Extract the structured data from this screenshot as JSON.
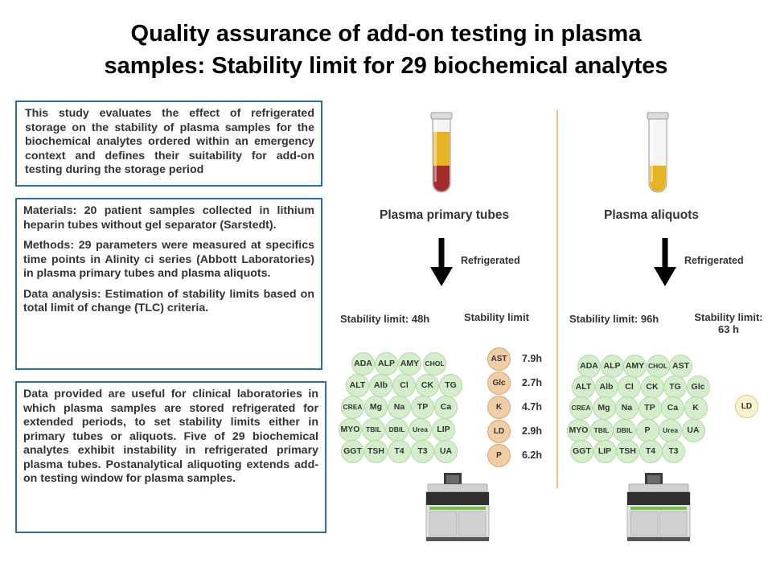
{
  "title": {
    "line1": "Quality assurance of add-on testing in plasma",
    "line2": "samples: Stability limit for 29 biochemical analytes"
  },
  "intro_text": "This study evaluates the effect of refrigerated storage on the stability of plasma samples for the biochemical analytes ordered within an emergency context and defines their suitability for add-on testing during the storage period",
  "methods": {
    "materials": "Materials: 20 patient samples collected in lithium heparin tubes without gel separator (Sarstedt).",
    "methods": "Methods: 29 parameters were measured at specifics time points in Alinity ci series (Abbott Laboratories) in plasma primary tubes and plasma aliquots.",
    "analysis": "Data analysis: Estimation of stability limits based on total limit of change (TLC) criteria."
  },
  "conclusion_text": "Data provided are useful for clinical laboratories in which plasma samples are stored refrigerated for extended periods, to set stability limits either in primary tubes or aliquots. Five of 29 biochemical analytes exhibit instability in refrigerated primary plasma tubes. Postanalytical aliquoting extends add-on testing window for plasma samples.",
  "colors": {
    "box_border": "#2e6da4",
    "stable_circle": "#d4eecb",
    "unstable_circle": "#f1cda6",
    "aliquot_unstable_circle": "#fbf2cf",
    "divider": "#e9c48a",
    "blood_red": "#a52a2a",
    "plasma_yellow": "#e6b422"
  },
  "primary": {
    "label": "Plasma primary tubes",
    "arrow_label": "Refrigerated",
    "stability_label": "Stability limit: 48h",
    "unstable_label": "Stability limit",
    "stable_analytes": [
      [
        "ADA",
        "ALP",
        "AMY",
        "CHOL"
      ],
      [
        "ALT",
        "Alb",
        "Cl",
        "CK",
        "TG"
      ],
      [
        "CREA",
        "Mg",
        "Na",
        "TP",
        "Ca"
      ],
      [
        "MYO",
        "TBIL",
        "DBIL",
        "Urea",
        "LIP"
      ],
      [
        "GGT",
        "TSH",
        "T4",
        "T3",
        "UA"
      ]
    ],
    "unstable_analytes": [
      {
        "name": "AST",
        "hours": "7.9h"
      },
      {
        "name": "Glc",
        "hours": "2.7h"
      },
      {
        "name": "K",
        "hours": "4.7h"
      },
      {
        "name": "LD",
        "hours": "2.9h"
      },
      {
        "name": "P",
        "hours": "6.2h"
      }
    ]
  },
  "aliquot": {
    "label": "Plasma aliquots",
    "arrow_label": "Refrigerated",
    "stability_label": "Stability limit: 96h",
    "unstable_label_line1": "Stability limit:",
    "unstable_label_line2": "63 h",
    "stable_analytes": [
      [
        "ADA",
        "ALP",
        "AMY",
        "CHOL",
        "AST"
      ],
      [
        "ALT",
        "Alb",
        "Cl",
        "CK",
        "TG",
        "Glc"
      ],
      [
        "CREA",
        "Mg",
        "Na",
        "TP",
        "Ca",
        "K"
      ],
      [
        "MYO",
        "TBIL",
        "DBIL",
        "P",
        "Urea",
        "UA"
      ],
      [
        "GGT",
        "LIP",
        "TSH",
        "T4",
        "T3"
      ]
    ],
    "unstable_analyte": "LD"
  }
}
